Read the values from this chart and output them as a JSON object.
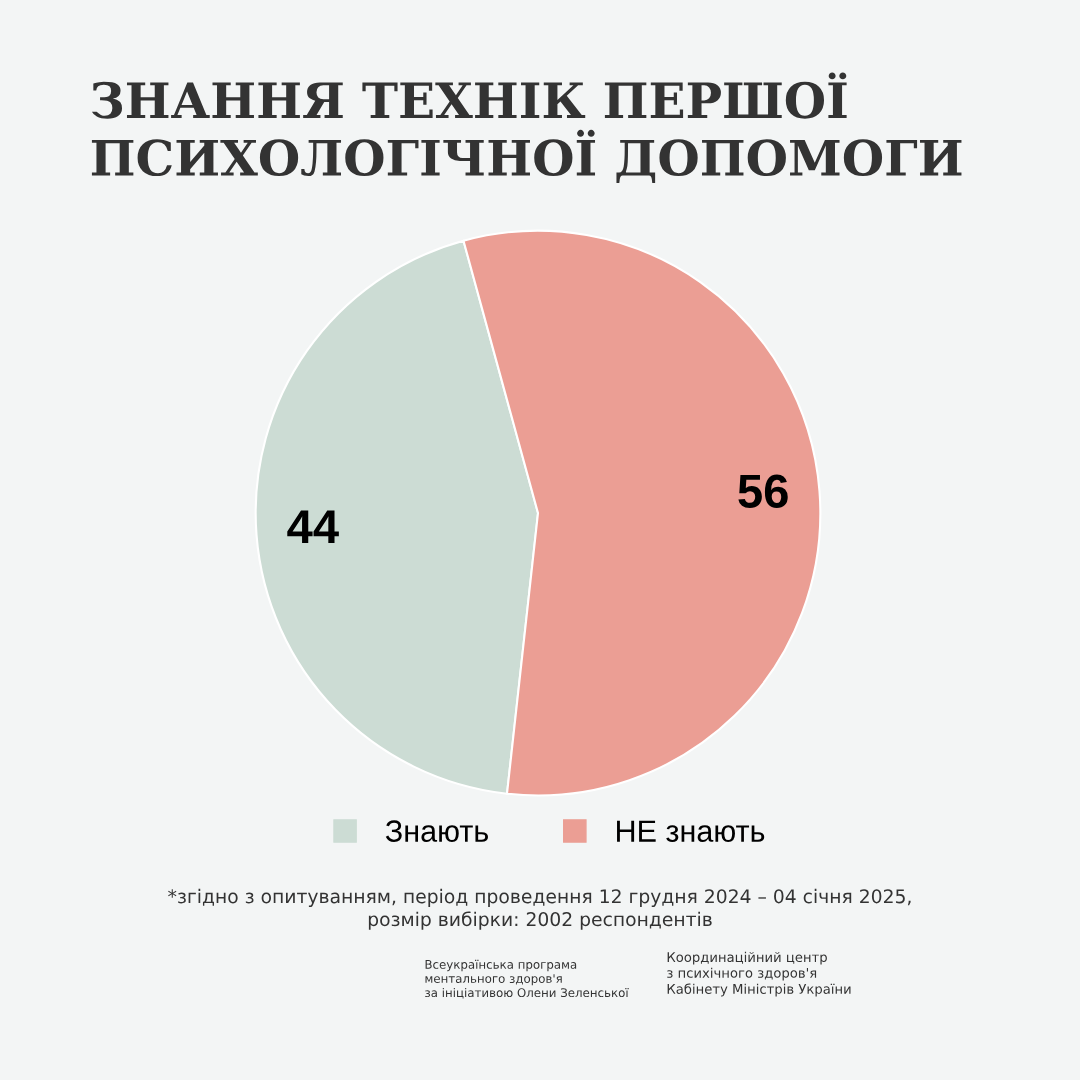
{
  "chart_data": {
    "type": "pie",
    "title": "ЗНАННЯ ТЕХНІК ПЕРШОЇ\nПСИХОЛОГІЧНОЇ ДОПОМОГИ",
    "categories": [
      "Знають",
      "НЕ знають"
    ],
    "values": [
      44,
      56
    ],
    "colors": [
      "#ccdcd4",
      "#eb9e94"
    ],
    "data_labels": true,
    "legend": "bottom",
    "annotations": [
      "*згідно з опитуванням, період проведення 12 грудня 2024 – 04 січня 2025,\nрозмір вибірки: 2002 респондентів",
      "Всеукраїнська програма\nментального здоров'я\nза ініціативою Олени Зеленської",
      "Координаційний центр\nз психічного здоров'я\nКабінету Міністрів України"
    ]
  }
}
